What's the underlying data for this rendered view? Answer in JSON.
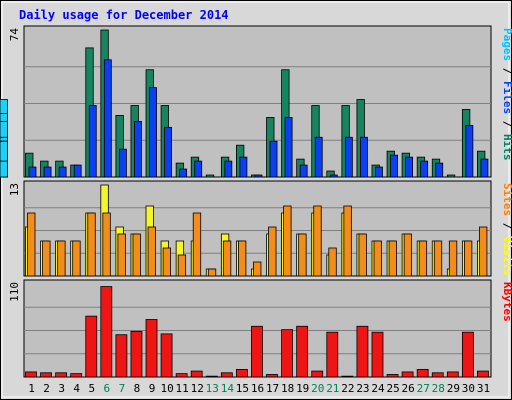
{
  "chart_data": {
    "type": "bar",
    "title": "Daily usage for December 2014",
    "categories": [
      "1",
      "2",
      "3",
      "4",
      "5",
      "6",
      "7",
      "8",
      "9",
      "10",
      "11",
      "12",
      "13",
      "14",
      "15",
      "16",
      "17",
      "18",
      "19",
      "20",
      "21",
      "22",
      "23",
      "24",
      "25",
      "26",
      "27",
      "28",
      "29",
      "30",
      "31"
    ],
    "weekend_days": [
      "6",
      "7",
      "13",
      "14",
      "20",
      "21",
      "27",
      "28"
    ],
    "panels": [
      {
        "name": "top",
        "scale_label": "74",
        "ylim": [
          0,
          74
        ],
        "legend": [
          {
            "text": "Pages",
            "color": "#00c0ff"
          },
          {
            "text": " / ",
            "color": "#000000"
          },
          {
            "text": "Files",
            "color": "#0040ff"
          },
          {
            "text": " / ",
            "color": "#000000"
          },
          {
            "text": "Hits",
            "color": "#008060"
          }
        ],
        "series": [
          {
            "name": "Hits",
            "color": "#15845f",
            "values": [
              12,
              8,
              8,
              6,
              65,
              74,
              31,
              36,
              54,
              36,
              7,
              10,
              1,
              10,
              16,
              1,
              30,
              54,
              9,
              36,
              3,
              36,
              39,
              6,
              13,
              12,
              10,
              9,
              1,
              34,
              13
            ]
          },
          {
            "name": "Files",
            "color": "#0d3ff2",
            "values": [
              5,
              5,
              5,
              6,
              36,
              59,
              14,
              28,
              45,
              25,
              4,
              8,
              0,
              8,
              10,
              1,
              18,
              30,
              6,
              20,
              1,
              20,
              20,
              5,
              11,
              10,
              8,
              7,
              0,
              26,
              9
            ]
          },
          {
            "name": "Pages",
            "color": "#1fd0f5",
            "values": [
              5,
              4,
              5,
              6,
              33,
              39,
              14,
              21,
              32,
              22,
              4,
              8,
              0,
              7,
              9,
              1,
              15,
              28,
              6,
              20,
              1,
              18,
              18,
              4,
              11,
              10,
              7,
              7,
              0,
              18,
              8
            ]
          }
        ]
      },
      {
        "name": "middle",
        "scale_label": "13",
        "ylim": [
          0,
          13
        ],
        "legend": [
          {
            "text": "Sites",
            "color": "#ff8000"
          },
          {
            "text": " / ",
            "color": "#000000"
          },
          {
            "text": "Visits",
            "color": "#ffff00"
          }
        ],
        "series": [
          {
            "name": "Visits",
            "color": "#f5f52a",
            "values": [
              7,
              5,
              5,
              5,
              9,
              13,
              7,
              6,
              10,
              5,
              5,
              5,
              1,
              6,
              5,
              1,
              6,
              9,
              6,
              9,
              3,
              9,
              6,
              5,
              5,
              6,
              5,
              5,
              1,
              5,
              5
            ]
          },
          {
            "name": "Sites",
            "color": "#f28c1a",
            "values": [
              9,
              5,
              5,
              5,
              9,
              9,
              6,
              6,
              7,
              4,
              3,
              9,
              1,
              5,
              5,
              2,
              7,
              10,
              6,
              10,
              4,
              10,
              6,
              5,
              5,
              6,
              5,
              5,
              5,
              5,
              7
            ]
          }
        ]
      },
      {
        "name": "bottom",
        "scale_label": "110",
        "ylim": [
          0,
          110
        ],
        "legend": [
          {
            "text": "KBytes",
            "color": "#ff0000"
          }
        ],
        "series": [
          {
            "name": "KBytes",
            "color": "#f01515",
            "values": [
              6,
              5,
              5,
              4,
              72,
              107,
              50,
              54,
              68,
              51,
              4,
              7,
              1,
              5,
              9,
              60,
              3,
              56,
              60,
              7,
              53,
              1,
              60,
              53,
              3,
              6,
              9,
              5,
              6,
              53,
              7
            ]
          }
        ]
      }
    ],
    "grid": true,
    "bg_color": "#c0c0c0",
    "outer_color": "#d8d8d8"
  }
}
